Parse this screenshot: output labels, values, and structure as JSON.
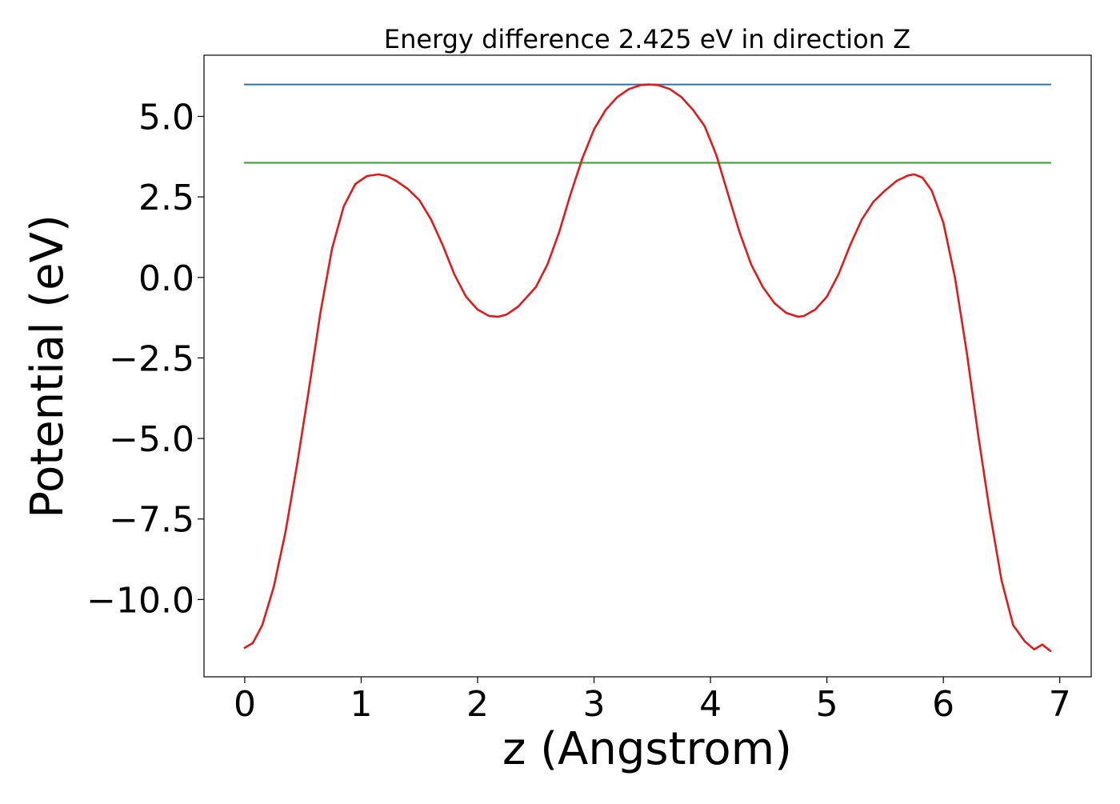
{
  "chart_data": {
    "type": "line",
    "title": "Energy difference 2.425 eV in direction Z",
    "xlabel": "z (Angstrom)",
    "ylabel": "Potential (eV)",
    "xlim": [
      -0.35,
      7.27
    ],
    "ylim": [
      -12.4,
      6.9
    ],
    "xticks": [
      0,
      1,
      2,
      3,
      4,
      5,
      6,
      7
    ],
    "xtick_labels": [
      "0",
      "1",
      "2",
      "3",
      "4",
      "5",
      "6",
      "7"
    ],
    "yticks": [
      -10.0,
      -7.5,
      -5.0,
      -2.5,
      0.0,
      2.5,
      5.0
    ],
    "ytick_labels": [
      "−10.0",
      "−7.5",
      "−5.0",
      "−2.5",
      "0.0",
      "2.5",
      "5.0"
    ],
    "grid": false,
    "series": [
      {
        "color": "#1f77b4",
        "x": [
          0,
          6.92
        ],
        "y": [
          5.99,
          5.99
        ]
      },
      {
        "color": "#2ca02c",
        "x": [
          0,
          6.92
        ],
        "y": [
          3.56,
          3.56
        ]
      },
      {
        "color": "#e31a1c",
        "x": [
          0.0,
          0.07,
          0.15,
          0.25,
          0.35,
          0.45,
          0.55,
          0.65,
          0.75,
          0.85,
          0.95,
          1.05,
          1.15,
          1.22,
          1.3,
          1.4,
          1.5,
          1.6,
          1.7,
          1.8,
          1.9,
          2.0,
          2.1,
          2.18,
          2.25,
          2.35,
          2.5,
          2.6,
          2.7,
          2.8,
          2.9,
          3.0,
          3.1,
          3.2,
          3.3,
          3.4,
          3.47,
          3.55,
          3.65,
          3.75,
          3.85,
          3.95,
          4.05,
          4.15,
          4.25,
          4.35,
          4.45,
          4.55,
          4.65,
          4.75,
          4.8,
          4.9,
          5.0,
          5.1,
          5.2,
          5.3,
          5.4,
          5.5,
          5.6,
          5.7,
          5.75,
          5.82,
          5.9,
          6.0,
          6.1,
          6.2,
          6.3,
          6.4,
          6.5,
          6.6,
          6.7,
          6.78,
          6.85,
          6.92
        ],
        "y": [
          -11.5,
          -11.35,
          -10.8,
          -9.6,
          -7.9,
          -5.8,
          -3.5,
          -1.1,
          0.9,
          2.2,
          2.9,
          3.15,
          3.2,
          3.15,
          3.0,
          2.75,
          2.4,
          1.8,
          1.0,
          0.1,
          -0.6,
          -1.0,
          -1.2,
          -1.22,
          -1.15,
          -0.9,
          -0.3,
          0.4,
          1.4,
          2.6,
          3.7,
          4.6,
          5.2,
          5.6,
          5.85,
          5.97,
          5.99,
          5.97,
          5.85,
          5.6,
          5.2,
          4.7,
          3.8,
          2.6,
          1.4,
          0.4,
          -0.3,
          -0.8,
          -1.1,
          -1.22,
          -1.2,
          -1.0,
          -0.6,
          0.1,
          1.0,
          1.8,
          2.35,
          2.7,
          3.0,
          3.17,
          3.2,
          3.1,
          2.7,
          1.7,
          0.0,
          -2.3,
          -4.9,
          -7.3,
          -9.4,
          -10.8,
          -11.3,
          -11.55,
          -11.4,
          -11.6
        ]
      }
    ]
  }
}
